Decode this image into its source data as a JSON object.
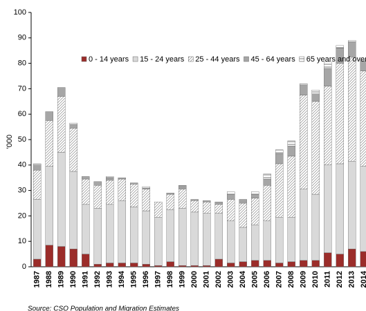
{
  "chart_data": {
    "type": "stacked-bar",
    "y_label": "'000",
    "source": "Source: CSO Population and Migration Estimates",
    "categories": [
      "1987",
      "1988",
      "1989",
      "1990",
      "1991",
      "1992",
      "1993",
      "1994",
      "1995",
      "1996",
      "1997",
      "1998",
      "1999",
      "2000",
      "2001",
      "2002",
      "2003",
      "2004",
      "2005",
      "2006",
      "2007",
      "2008",
      "2009",
      "2010",
      "2011",
      "2012",
      "2013",
      "2014"
    ],
    "series": [
      {
        "name": "0 - 14 years",
        "color": "#9b2d2a",
        "pattern": "solid",
        "values": [
          3,
          8.5,
          8,
          7,
          5,
          1,
          1.5,
          1.5,
          1.5,
          1,
          0.5,
          2,
          0.5,
          0.5,
          0.5,
          3,
          1.5,
          2,
          2.5,
          2.5,
          1.5,
          2,
          2.5,
          2.5,
          5.5,
          5,
          7,
          6
        ]
      },
      {
        "name": "15 - 24 years",
        "color": "#d9d9d9",
        "pattern": "solid",
        "values": [
          23.5,
          31,
          37,
          30.5,
          19.5,
          22,
          23,
          24.5,
          22,
          21,
          19,
          20.5,
          22.5,
          21,
          20.5,
          18,
          16.5,
          13.5,
          14,
          15.5,
          18,
          17.5,
          28,
          26,
          34.5,
          35.5,
          34.5,
          33.5
        ]
      },
      {
        "name": "25 - 44 years",
        "color": "#8c8c8c",
        "pattern": "diagonal",
        "values": [
          11.5,
          18,
          22,
          17,
          10,
          9,
          9.5,
          8.5,
          9,
          8.5,
          6,
          6,
          7.5,
          4.5,
          4.5,
          3.5,
          8.5,
          9.5,
          10.5,
          14,
          21,
          24,
          37,
          36.5,
          31,
          39.5,
          41,
          37.5
        ]
      },
      {
        "name": "45 - 64 years",
        "color": "#a6a6a6",
        "pattern": "solid",
        "values": [
          2,
          3.5,
          3.5,
          1.5,
          1,
          1.5,
          1,
          0.5,
          0.5,
          0.5,
          0,
          0.5,
          1,
          0.5,
          0.5,
          1,
          2,
          1,
          1.5,
          2.5,
          4,
          4,
          4,
          3,
          7,
          6,
          6,
          4
        ]
      },
      {
        "name": "65 years and over",
        "color": "#404040",
        "pattern": "horizontal",
        "values": [
          0.5,
          0,
          0,
          0.5,
          0,
          0,
          0.5,
          0,
          0,
          0.5,
          0,
          0,
          0.5,
          0,
          0,
          0,
          1,
          0.5,
          1,
          2,
          1.5,
          2,
          0.5,
          1.5,
          2.5,
          1,
          0.5,
          0.5
        ]
      }
    ],
    "ylim": [
      0,
      100
    ],
    "yticks": [
      0,
      10,
      20,
      30,
      40,
      50,
      60,
      70,
      80,
      90,
      100
    ],
    "grid": false
  }
}
